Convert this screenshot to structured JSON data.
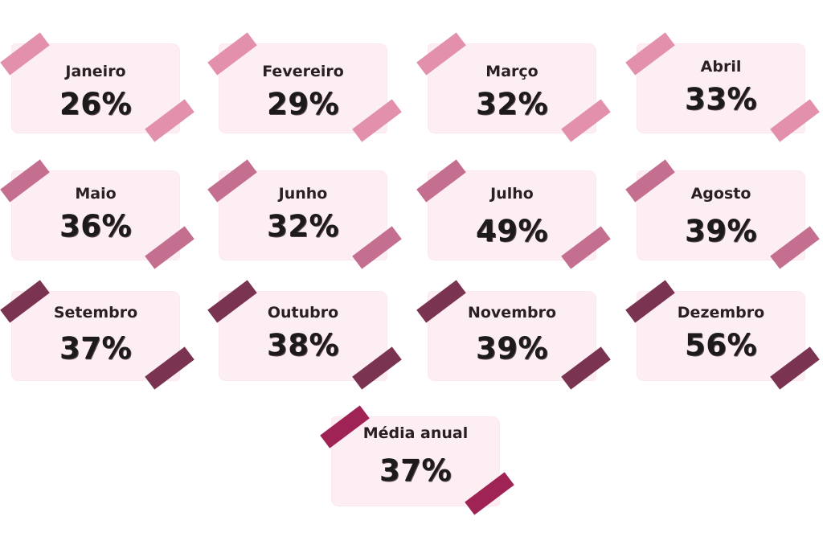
{
  "months": [
    {
      "name": "Janeiro",
      "value": "26%"
    },
    {
      "name": "Fevereiro",
      "value": "29%"
    },
    {
      "name": "Março",
      "value": "32%"
    },
    {
      "name": "Abril",
      "value": "33%"
    },
    {
      "name": "Maio",
      "value": "36%"
    },
    {
      "name": "Junho",
      "value": "32%"
    },
    {
      "name": "Julho",
      "value": "49%"
    },
    {
      "name": "Agosto",
      "value": "39%"
    },
    {
      "name": "Setembro",
      "value": "37%"
    },
    {
      "name": "Outubro",
      "value": "38%"
    },
    {
      "name": "Novembro",
      "value": "39%"
    },
    {
      "name": "Dezembro",
      "value": "56%"
    }
  ],
  "annual": {
    "name": "Média anual",
    "value": "37%"
  },
  "colors": {
    "paper": "#fdeef3",
    "tape_row1": "#e290ac",
    "tape_row2": "#c46f8f",
    "tape_row3": "#7a3350",
    "tape_annual": "#9f2455",
    "text": "#1c1a1b"
  }
}
